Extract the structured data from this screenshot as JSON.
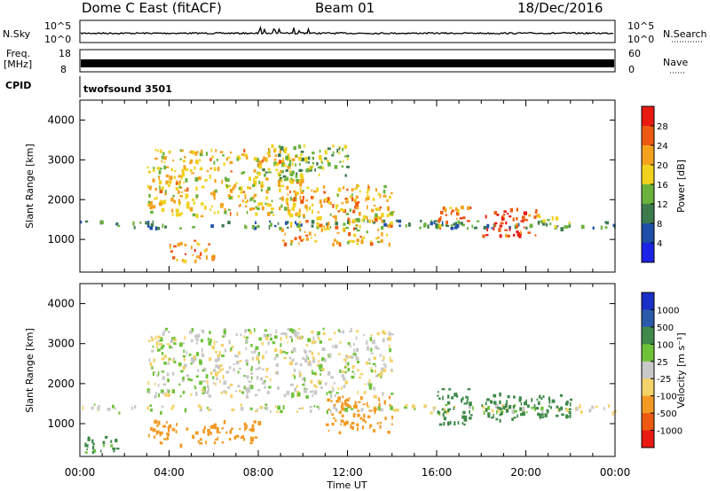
{
  "header": {
    "station": "Dome C East (fitACF)",
    "beam": "Beam 01",
    "date": "18/Dec/2016"
  },
  "strips": {
    "nsky": {
      "label": "N.Sky",
      "left_ticks": [
        "10^5",
        "10^0"
      ],
      "right_ticks": [
        "10^5",
        "10^0"
      ],
      "right_label": "N.Search"
    },
    "freq": {
      "label_line1": "Freq.",
      "label_line2": "[MHz]",
      "left_ticks": [
        "18",
        "8"
      ],
      "right_ticks": [
        "60",
        "0"
      ],
      "right_label": "Nave"
    },
    "cpid": {
      "label": "CPID",
      "program": "twofsound 3501"
    }
  },
  "panels": {
    "power": {
      "ylabel": "Slant Range [km]",
      "colorbar_label": "Power [dB]",
      "colorbar_ticks": [
        "28",
        "24",
        "20",
        "16",
        "12",
        "8",
        "4"
      ]
    },
    "velocity": {
      "ylabel": "Slant Range [km]",
      "colorbar_label": "Velocity [m s⁻¹]",
      "colorbar_ticks": [
        "1000",
        "500",
        "100",
        "25",
        "-25",
        "-100",
        "-500",
        "-1000"
      ]
    }
  },
  "xaxis": {
    "label": "Time UT",
    "ticks": [
      "00:00",
      "04:00",
      "08:00",
      "12:00",
      "16:00",
      "20:00",
      "00:00"
    ]
  },
  "colors": {
    "power_scale": [
      "#1b24e6",
      "#1f4fa8",
      "#3d7b4f",
      "#6bb23c",
      "#f0d21e",
      "#f4a21e",
      "#ee5a12",
      "#e81a12"
    ],
    "velocity_scale": [
      "#e81a12",
      "#ee5a12",
      "#f29a22",
      "#f4d26a",
      "#c8c8c8",
      "#6fc23a",
      "#3f8a4a",
      "#2a5aa8",
      "#1b30c8"
    ]
  },
  "chart_data": [
    {
      "type": "heatmap",
      "title": "Power",
      "ylabel": "Slant Range [km]",
      "xlabel": "Time UT",
      "xlim": [
        "00:00",
        "24:00"
      ],
      "ylim": [
        180,
        4500
      ],
      "colorbar": {
        "label": "Power [dB]",
        "ticks": [
          4,
          8,
          12,
          16,
          20,
          24,
          28
        ],
        "range": [
          0,
          30
        ]
      },
      "features": [
        {
          "x": [
            "00:00",
            "24:00"
          ],
          "y": [
            1300,
            1500
          ],
          "power_dB": 10
        },
        {
          "x": [
            "03:00",
            "10:00"
          ],
          "y": [
            1600,
            3300
          ],
          "power_dB": 18
        },
        {
          "x": [
            "08:00",
            "12:00"
          ],
          "y": [
            2500,
            3400
          ],
          "power_dB": 14
        },
        {
          "x": [
            "09:00",
            "14:00"
          ],
          "y": [
            900,
            2400
          ],
          "power_dB": 19
        },
        {
          "x": [
            "04:00",
            "06:00"
          ],
          "y": [
            450,
            1000
          ],
          "power_dB": 22
        },
        {
          "x": [
            "16:00",
            "17:30"
          ],
          "y": [
            1300,
            1900
          ],
          "power_dB": 22
        },
        {
          "x": [
            "18:00",
            "20:30"
          ],
          "y": [
            1100,
            1800
          ],
          "power_dB": 26
        },
        {
          "x": [
            "20:30",
            "22:00"
          ],
          "y": [
            1300,
            1600
          ],
          "power_dB": 14
        }
      ]
    },
    {
      "type": "heatmap",
      "title": "Velocity",
      "ylabel": "Slant Range [km]",
      "xlabel": "Time UT",
      "xlim": [
        "00:00",
        "24:00"
      ],
      "ylim": [
        180,
        4500
      ],
      "colorbar": {
        "label": "Velocity [m s⁻¹]",
        "ticks": [
          -1000,
          -500,
          -100,
          -25,
          25,
          100,
          500,
          1000
        ],
        "range": [
          -1200,
          1200
        ]
      },
      "features": [
        {
          "x": [
            "00:00",
            "24:00"
          ],
          "y": [
            1300,
            1500
          ],
          "velocity": 0
        },
        {
          "x": [
            "03:00",
            "14:00"
          ],
          "y": [
            1700,
            3400
          ],
          "velocity": 0
        },
        {
          "x": [
            "03:00",
            "08:00"
          ],
          "y": [
            500,
            1100
          ],
          "velocity": -300
        },
        {
          "x": [
            "11:00",
            "14:00"
          ],
          "y": [
            800,
            1700
          ],
          "velocity": -300
        },
        {
          "x": [
            "16:00",
            "17:30"
          ],
          "y": [
            1000,
            1900
          ],
          "velocity": 200
        },
        {
          "x": [
            "18:00",
            "22:00"
          ],
          "y": [
            1100,
            1800
          ],
          "velocity": 300
        },
        {
          "x": [
            "00:00",
            "02:00"
          ],
          "y": [
            300,
            700
          ],
          "velocity": 150
        }
      ]
    }
  ]
}
